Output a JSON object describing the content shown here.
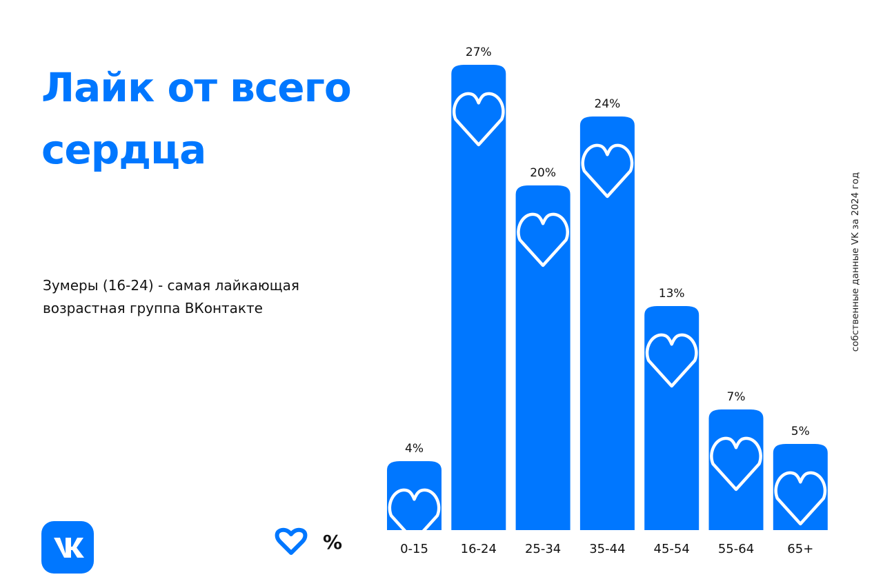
{
  "header": {
    "title_line1": "Лайк от всего",
    "title_line2": "сердца",
    "subtitle_line1": "Зумеры (16-24) - самая лайкающая",
    "subtitle_line2": "возрастная группа ВКонтакте"
  },
  "source": "собственные данные VK за 2024 год",
  "legend": {
    "icon": "heart-outline-icon",
    "label": "%"
  },
  "logo": {
    "icon": "vk-logo-icon"
  },
  "colors": {
    "accent": "#0077FF",
    "text": "#111111",
    "background": "#FFFFFF",
    "heart_outline": "#FFFFFF"
  },
  "chart_data": {
    "type": "bar",
    "categories": [
      "0-15",
      "16-24",
      "25-34",
      "35-44",
      "45-54",
      "55-64",
      "65+"
    ],
    "values": [
      4,
      27,
      20,
      24,
      13,
      7,
      5
    ],
    "labels": [
      "4%",
      "27%",
      "20%",
      "24%",
      "13%",
      "7%",
      "5%"
    ],
    "unit": "%",
    "grid": false,
    "legend_position": "bottom-left",
    "marker": "heart-icon"
  }
}
